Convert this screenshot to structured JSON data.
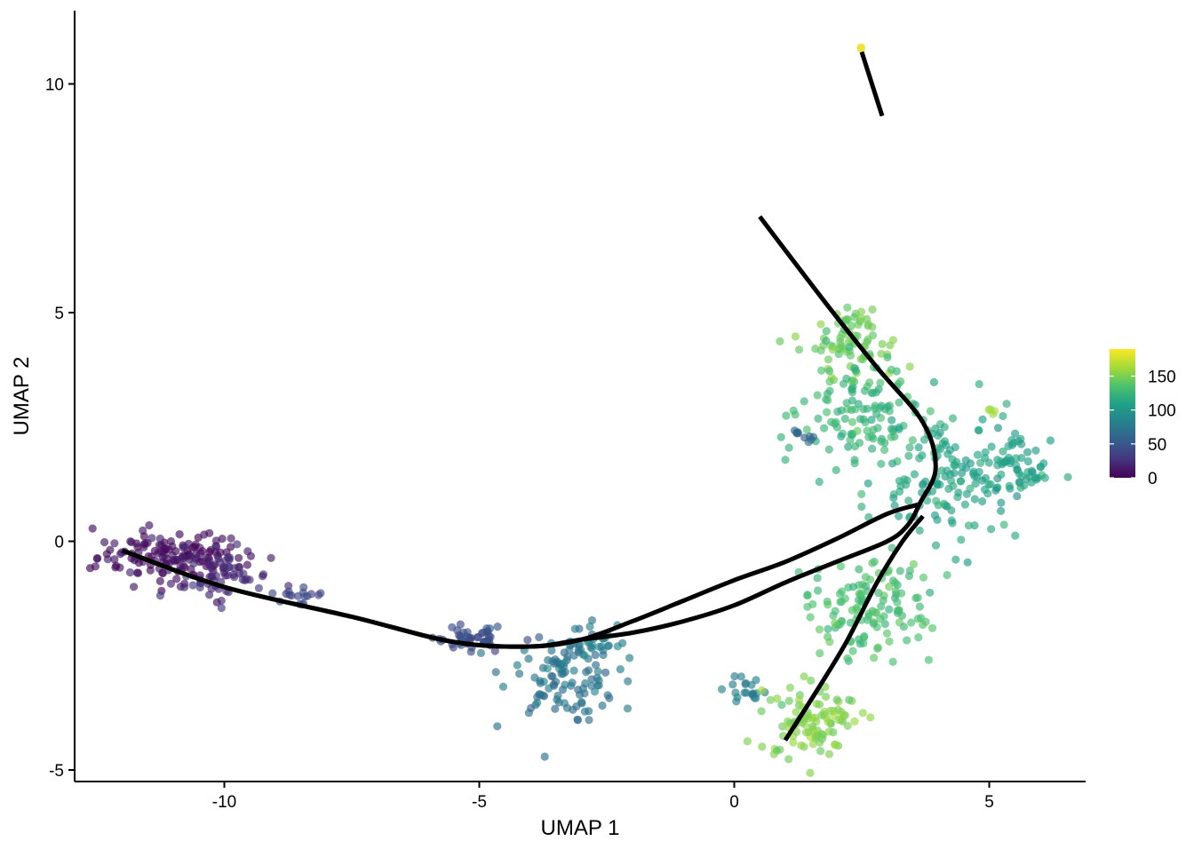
{
  "chart_data": {
    "type": "scatter",
    "title": "",
    "xlabel": "UMAP 1",
    "ylabel": "UMAP 2",
    "xlim": [
      -12.9,
      6.9
    ],
    "ylim": [
      -5.2,
      11.6
    ],
    "xticks": [
      -10,
      -5,
      0,
      5
    ],
    "yticks": [
      -5,
      0,
      5,
      10
    ],
    "xtick_labels": [
      "-10",
      "-5",
      "0",
      "5"
    ],
    "ytick_labels": [
      "-5",
      "0",
      "5",
      "10"
    ],
    "grid": false,
    "legend_position": "right",
    "color_scale": {
      "name": "viridis",
      "range": [
        0,
        190
      ],
      "ticks": [
        0,
        50,
        100,
        150
      ],
      "tick_labels": [
        "0",
        "50",
        "100",
        "150"
      ]
    },
    "point_opacity": 0.65,
    "clusters": [
      {
        "cx": -11.0,
        "cy": -0.35,
        "sx": 0.75,
        "sy": 0.28,
        "n": 150,
        "value": 8
      },
      {
        "cx": -9.9,
        "cy": -0.8,
        "sx": 0.4,
        "sy": 0.25,
        "n": 50,
        "value": 22
      },
      {
        "cx": -8.6,
        "cy": -1.2,
        "sx": 0.25,
        "sy": 0.1,
        "n": 18,
        "value": 38
      },
      {
        "cx": -5.2,
        "cy": -2.1,
        "sx": 0.35,
        "sy": 0.15,
        "n": 50,
        "value": 45
      },
      {
        "cx": -3.4,
        "cy": -2.9,
        "sx": 0.55,
        "sy": 0.45,
        "n": 110,
        "value": 72
      },
      {
        "cx": -2.7,
        "cy": -2.2,
        "sx": 0.25,
        "sy": 0.25,
        "n": 25,
        "value": 78
      },
      {
        "cx": 0.3,
        "cy": -3.3,
        "sx": 0.3,
        "sy": 0.2,
        "n": 20,
        "value": 80
      },
      {
        "cx": 1.5,
        "cy": -3.9,
        "sx": 0.5,
        "sy": 0.4,
        "n": 100,
        "value": 150
      },
      {
        "cx": 2.6,
        "cy": -1.4,
        "sx": 0.6,
        "sy": 0.55,
        "n": 130,
        "value": 132
      },
      {
        "cx": 2.4,
        "cy": 4.3,
        "sx": 0.4,
        "sy": 0.45,
        "n": 80,
        "value": 145
      },
      {
        "cx": 2.5,
        "cy": 2.7,
        "sx": 0.6,
        "sy": 0.7,
        "n": 120,
        "value": 125
      },
      {
        "cx": 4.2,
        "cy": 1.4,
        "sx": 0.7,
        "sy": 0.7,
        "n": 130,
        "value": 112
      },
      {
        "cx": 5.4,
        "cy": 1.5,
        "sx": 0.4,
        "sy": 0.35,
        "n": 60,
        "value": 104
      },
      {
        "cx": 1.3,
        "cy": 2.35,
        "sx": 0.15,
        "sy": 0.07,
        "n": 10,
        "value": 62
      },
      {
        "cx": 2.5,
        "cy": 10.8,
        "sx": 0.02,
        "sy": 0.02,
        "n": 3,
        "value": 178
      },
      {
        "cx": 5.0,
        "cy": 2.85,
        "sx": 0.05,
        "sy": 0.05,
        "n": 4,
        "value": 160
      }
    ],
    "trajectories": [
      {
        "name": "",
        "points": [
          [
            -12.0,
            -0.2
          ],
          [
            -10.0,
            -1.0
          ],
          [
            -7.5,
            -1.65
          ],
          [
            -5.5,
            -2.2
          ],
          [
            -4.0,
            -2.3
          ],
          [
            -3.0,
            -2.15
          ],
          [
            -2.0,
            -1.75
          ],
          [
            -1.0,
            -1.3
          ],
          [
            0.0,
            -0.85
          ],
          [
            1.0,
            -0.45
          ],
          [
            2.0,
            0.05
          ],
          [
            3.0,
            0.6
          ],
          [
            3.6,
            0.8
          ]
        ]
      },
      {
        "name": "",
        "points": [
          [
            -12.0,
            -0.2
          ],
          [
            -10.0,
            -1.0
          ],
          [
            -7.5,
            -1.65
          ],
          [
            -5.5,
            -2.2
          ],
          [
            -4.0,
            -2.3
          ],
          [
            -3.0,
            -2.15
          ],
          [
            -2.0,
            -2.0
          ],
          [
            -1.0,
            -1.75
          ],
          [
            0.0,
            -1.4
          ],
          [
            1.0,
            -0.9
          ],
          [
            2.0,
            -0.45
          ],
          [
            3.0,
            0.0
          ],
          [
            3.4,
            0.35
          ],
          [
            3.65,
            0.85
          ],
          [
            3.95,
            1.6
          ],
          [
            3.7,
            2.6
          ],
          [
            2.8,
            3.8
          ],
          [
            1.8,
            5.2
          ],
          [
            0.5,
            7.1
          ]
        ]
      },
      {
        "name": "",
        "points": [
          [
            3.7,
            0.55
          ],
          [
            3.3,
            0.0
          ],
          [
            2.8,
            -0.9
          ],
          [
            2.2,
            -2.2
          ],
          [
            1.6,
            -3.3
          ],
          [
            1.0,
            -4.35
          ]
        ]
      },
      {
        "name": "",
        "points": [
          [
            2.5,
            10.7
          ],
          [
            2.9,
            9.3
          ]
        ]
      }
    ]
  }
}
